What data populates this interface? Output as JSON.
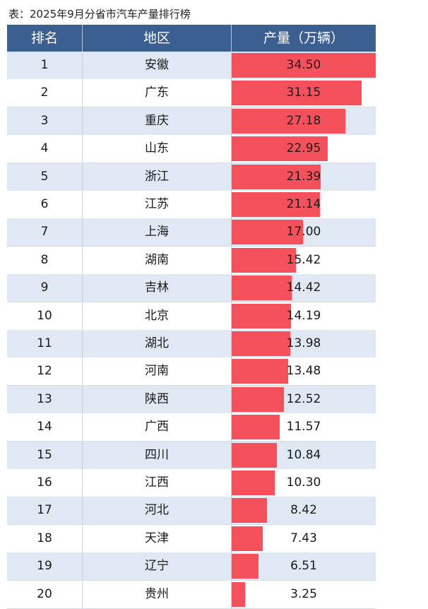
{
  "caption": "表：2025年9月分省市汽车产量排行榜",
  "colors": {
    "header_bg": "#3b5f91",
    "bar": "#f5515c",
    "row_alt": "#dfe8f3"
  },
  "chart_data": {
    "type": "table",
    "title": "表：2025年9月分省市汽车产量排行榜",
    "columns": [
      "排名",
      "地区",
      "产量（万辆）"
    ],
    "rows": [
      {
        "rank": "1",
        "region": "安徽",
        "value": 34.5
      },
      {
        "rank": "2",
        "region": "广东",
        "value": 31.15
      },
      {
        "rank": "3",
        "region": "重庆",
        "value": 27.18
      },
      {
        "rank": "4",
        "region": "山东",
        "value": 22.95
      },
      {
        "rank": "5",
        "region": "浙江",
        "value": 21.39
      },
      {
        "rank": "6",
        "region": "江苏",
        "value": 21.14
      },
      {
        "rank": "7",
        "region": "上海",
        "value": 17.0
      },
      {
        "rank": "8",
        "region": "湖南",
        "value": 15.42
      },
      {
        "rank": "9",
        "region": "吉林",
        "value": 14.42
      },
      {
        "rank": "10",
        "region": "北京",
        "value": 14.19
      },
      {
        "rank": "11",
        "region": "湖北",
        "value": 13.98
      },
      {
        "rank": "12",
        "region": "河南",
        "value": 13.48
      },
      {
        "rank": "13",
        "region": "陕西",
        "value": 12.52
      },
      {
        "rank": "14",
        "region": "广西",
        "value": 11.57
      },
      {
        "rank": "15",
        "region": "四川",
        "value": 10.84
      },
      {
        "rank": "16",
        "region": "江西",
        "value": 10.3
      },
      {
        "rank": "17",
        "region": "河北",
        "value": 8.42
      },
      {
        "rank": "18",
        "region": "天津",
        "value": 7.43
      },
      {
        "rank": "19",
        "region": "辽宁",
        "value": 6.51
      },
      {
        "rank": "20",
        "region": "贵州",
        "value": 3.25
      }
    ],
    "bar_max": 34.5
  }
}
